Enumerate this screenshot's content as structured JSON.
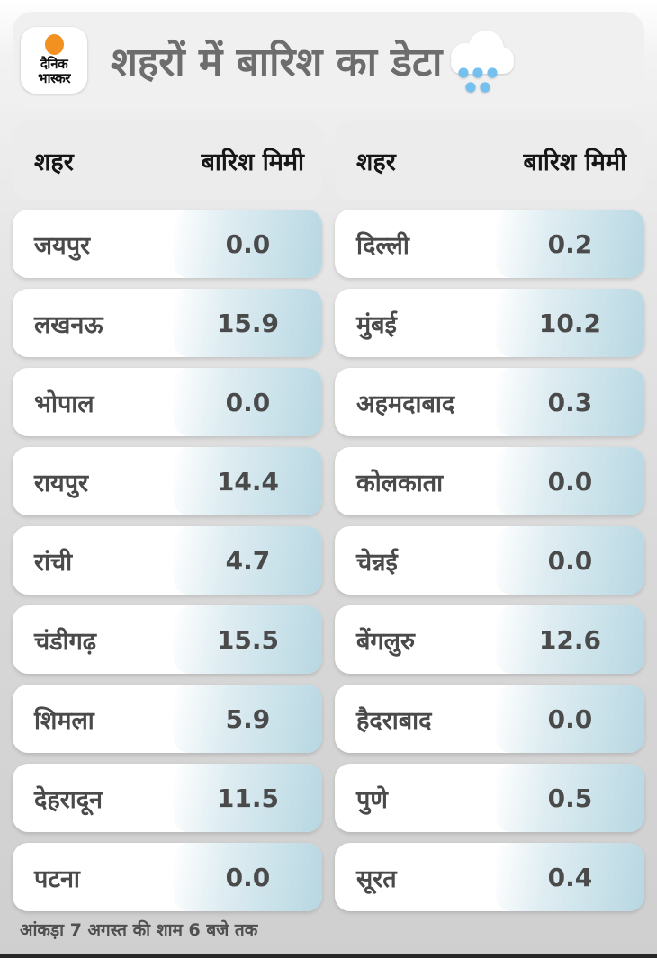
{
  "header": {
    "logo": {
      "line1": "दैनिक",
      "line2": "भास्कर",
      "dot_color": "#f29120"
    },
    "title": "शहरों में बारिश का डेटा",
    "title_color": "#6d6d6d"
  },
  "table": {
    "columns": {
      "city": "शहर",
      "rain": "बारिश मिमी"
    }
  },
  "left_table": {
    "rows": [
      {
        "city": "जयपुर",
        "rain": "0.0"
      },
      {
        "city": "लखनऊ",
        "rain": "15.9"
      },
      {
        "city": "भोपाल",
        "rain": "0.0"
      },
      {
        "city": "रायपुर",
        "rain": "14.4"
      },
      {
        "city": "रांची",
        "rain": "4.7"
      },
      {
        "city": "चंडीगढ़",
        "rain": "15.5"
      },
      {
        "city": "शिमला",
        "rain": "5.9"
      },
      {
        "city": "देहरादून",
        "rain": "11.5"
      },
      {
        "city": "पटना",
        "rain": "0.0"
      }
    ]
  },
  "right_table": {
    "rows": [
      {
        "city": "दिल्ली",
        "rain": "0.2"
      },
      {
        "city": "मुंबई",
        "rain": "10.2"
      },
      {
        "city": "अहमदाबाद",
        "rain": "0.3"
      },
      {
        "city": "कोलकाता",
        "rain": "0.0"
      },
      {
        "city": "चेन्नई",
        "rain": "0.0"
      },
      {
        "city": "बेंगलुरु",
        "rain": "12.6"
      },
      {
        "city": "हैदराबाद",
        "rain": "0.0"
      },
      {
        "city": "पुणे",
        "rain": "0.5"
      },
      {
        "city": "सूरत",
        "rain": "0.4"
      }
    ]
  },
  "footer": {
    "note": "आंकड़ा 7 अगस्त की शाम 6 बजे तक"
  },
  "colors": {
    "value_cell_blue": "#b7d7e2",
    "rain_drop_blue": "#74c0ee",
    "header_card_gray": "#ececec",
    "card_white": "#ffffff",
    "text_dark": "#4a4a4a",
    "logo_orange": "#f29120"
  },
  "chart_data": {
    "type": "table",
    "title": "शहरों में बारिश का डेटा",
    "columns": [
      "शहर",
      "बारिश मिमी"
    ],
    "unit": "mm",
    "tables": [
      {
        "rows": [
          [
            "जयपुर",
            0.0
          ],
          [
            "लखनऊ",
            15.9
          ],
          [
            "भोपाल",
            0.0
          ],
          [
            "रायपुर",
            14.4
          ],
          [
            "रांची",
            4.7
          ],
          [
            "चंडीगढ़",
            15.5
          ],
          [
            "शिमला",
            5.9
          ],
          [
            "देहरादून",
            11.5
          ],
          [
            "पटना",
            0.0
          ]
        ]
      },
      {
        "rows": [
          [
            "दिल्ली",
            0.2
          ],
          [
            "मुंबई",
            10.2
          ],
          [
            "अहमदाबाद",
            0.3
          ],
          [
            "कोलकाता",
            0.0
          ],
          [
            "चेन्नई",
            0.0
          ],
          [
            "बेंगलुरु",
            12.6
          ],
          [
            "हैदराबाद",
            0.0
          ],
          [
            "पुणे",
            0.5
          ],
          [
            "सूरत",
            0.4
          ]
        ]
      }
    ],
    "footnote": "आंकड़ा 7 अगस्त की शाम 6 बजे तक"
  }
}
